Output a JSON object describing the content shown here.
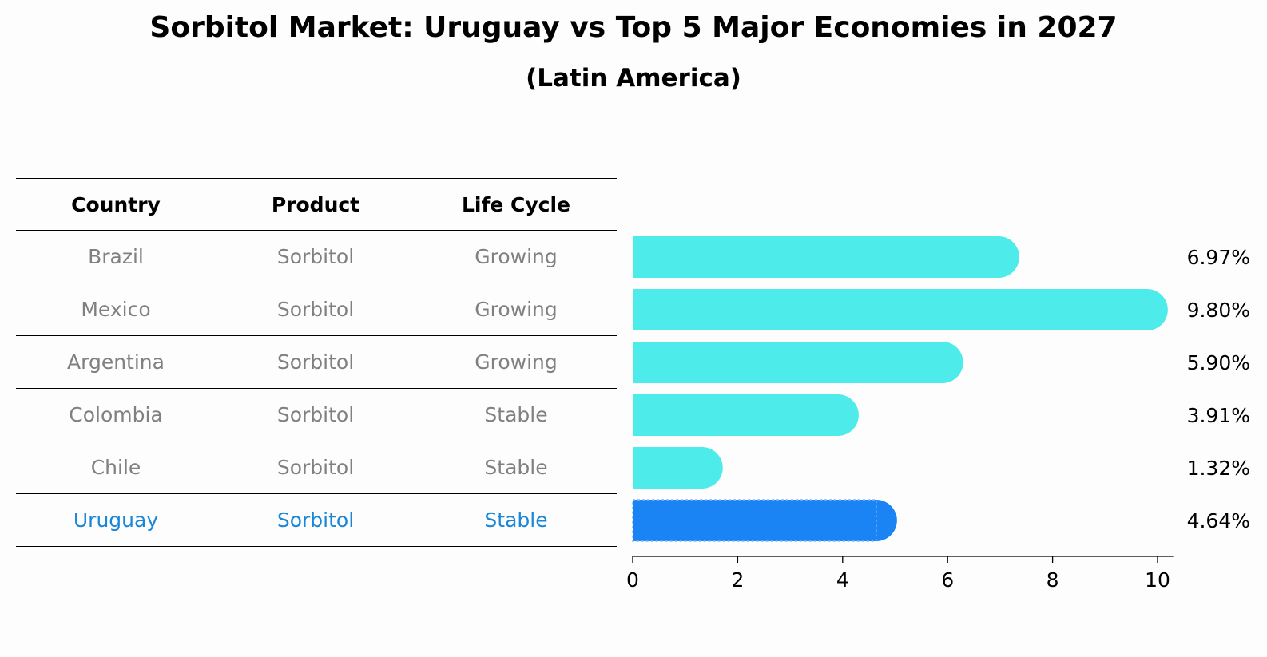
{
  "title": "Sorbitol Market: Uruguay vs Top 5 Major Economies in 2027",
  "subtitle": "(Latin America)",
  "table": {
    "headers": [
      "Country",
      "Product",
      "Life Cycle"
    ],
    "rows": [
      [
        "Brazil",
        "Sorbitol",
        "Growing"
      ],
      [
        "Mexico",
        "Sorbitol",
        "Growing"
      ],
      [
        "Argentina",
        "Sorbitol",
        "Growing"
      ],
      [
        "Colombia",
        "Sorbitol",
        "Stable"
      ],
      [
        "Chile",
        "Sorbitol",
        "Stable"
      ],
      [
        "Uruguay",
        "Sorbitol",
        "Stable"
      ]
    ]
  },
  "colors": {
    "bar": "#4deceb",
    "highlight_bar": "#1a84f5",
    "highlight_text": "#1a86d6",
    "muted_text": "#808080"
  },
  "chart_data": {
    "type": "bar",
    "orientation": "horizontal",
    "categories": [
      "Brazil",
      "Mexico",
      "Argentina",
      "Colombia",
      "Chile",
      "Uruguay"
    ],
    "values": [
      6.97,
      9.8,
      5.9,
      3.91,
      1.32,
      4.64
    ],
    "data_labels": [
      "6.97%",
      "9.80%",
      "5.90%",
      "3.91%",
      "1.32%",
      "4.64%"
    ],
    "highlight": "Uruguay",
    "xlim": [
      0,
      10.3
    ],
    "xticks": [
      0,
      2,
      4,
      6,
      8,
      10
    ],
    "grid": false
  }
}
